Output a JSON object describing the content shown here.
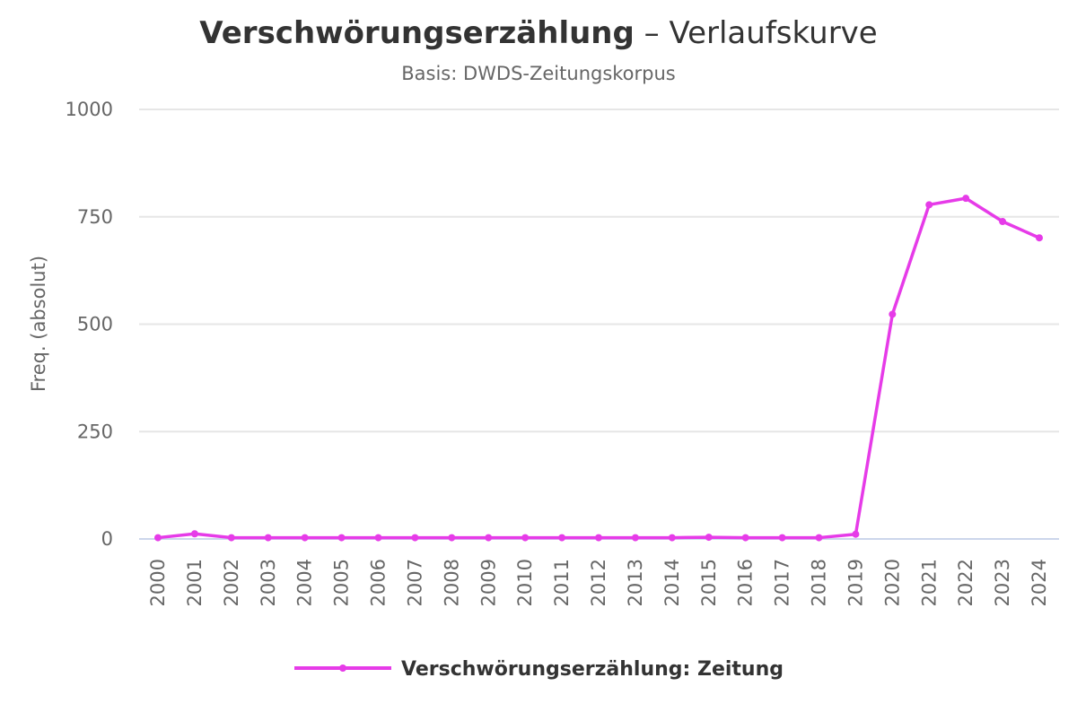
{
  "chart_data": {
    "type": "line",
    "title_main": "Verschwörungserzählung",
    "title_rest": " – Verlaufskurve",
    "subtitle": "Basis: DWDS-Zeitungskorpus",
    "ylabel": "Freq. (absolut)",
    "xlabel": "",
    "ylim": [
      0,
      1000
    ],
    "yticks": [
      0,
      250,
      500,
      750,
      1000
    ],
    "grid": true,
    "legend_position": "bottom-center",
    "categories": [
      "2000",
      "2001",
      "2002",
      "2003",
      "2004",
      "2005",
      "2006",
      "2007",
      "2008",
      "2009",
      "2010",
      "2011",
      "2012",
      "2013",
      "2014",
      "2015",
      "2016",
      "2017",
      "2018",
      "2019",
      "2020",
      "2021",
      "2022",
      "2023",
      "2024"
    ],
    "series": [
      {
        "name": "Verschwörungserzählung: Zeitung",
        "color": "#e63be8",
        "values": [
          3,
          12,
          3,
          3,
          3,
          3,
          3,
          3,
          3,
          3,
          3,
          3,
          3,
          3,
          3,
          4,
          3,
          3,
          3,
          11,
          523,
          778,
          793,
          739,
          701
        ]
      }
    ]
  }
}
